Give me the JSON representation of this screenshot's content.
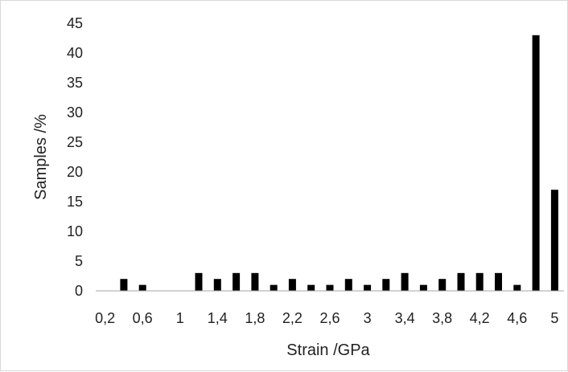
{
  "chart_data": {
    "type": "bar",
    "title": "",
    "xlabel": "Strain /GPa",
    "ylabel": "Samples /%",
    "ylim": [
      0,
      45
    ],
    "yticks": [
      "0",
      "5",
      "10",
      "15",
      "20",
      "25",
      "30",
      "35",
      "40",
      "45"
    ],
    "grid": false,
    "legend": "none",
    "bar_color": "#000000",
    "categories": [
      "0,2",
      "0,4",
      "0,6",
      "0,8",
      "1",
      "1,2",
      "1,4",
      "1,6",
      "1,8",
      "2",
      "2,2",
      "2,4",
      "2,6",
      "2,8",
      "3",
      "3,2",
      "3,4",
      "3,6",
      "3,8",
      "4",
      "4,2",
      "4,4",
      "4,6",
      "4,8",
      "5"
    ],
    "x_tick_labels": [
      "0,2",
      "",
      "0,6",
      "",
      "1",
      "",
      "1,4",
      "",
      "1,8",
      "",
      "2,2",
      "",
      "2,6",
      "",
      "3",
      "",
      "3,4",
      "",
      "3,8",
      "",
      "4,2",
      "",
      "4,6",
      "",
      "5"
    ],
    "values": [
      0,
      2,
      1,
      0,
      0,
      3,
      2,
      3,
      3,
      1,
      2,
      1,
      1,
      2,
      1,
      2,
      3,
      1,
      2,
      3,
      3,
      3,
      1,
      43,
      17
    ]
  }
}
